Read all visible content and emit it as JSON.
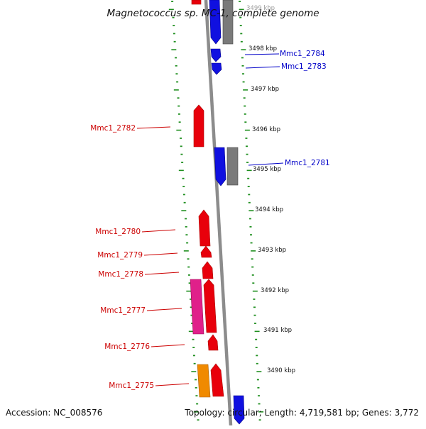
{
  "map": {
    "title": "Magnetococcus sp. MC-1, complete genome",
    "accession": "Accession: NC_008576",
    "stats": "Topology: circular; Length: 4,719,581 bp; Genes: 3,772",
    "scale_labels": [
      "3499 kbp",
      "3498 kbp",
      "3497 kbp",
      "3496 kbp",
      "3495 kbp",
      "3494 kbp",
      "3493 kbp",
      "3492 kbp",
      "3491 kbp",
      "3490 kbp"
    ],
    "colors": {
      "forward_strand": "#e8000b",
      "reverse_strand": "#1010e0",
      "other_gene": "#7a7a7a",
      "rna_gene": "#e0208a",
      "pseudogene": "#f08a00",
      "backbone": "#8c8c8c",
      "tick": "#1f8f1f",
      "label_forward": "#cc0000",
      "label_reverse": "#0000c8"
    },
    "genes": [
      {
        "id": "Mmc1_2784",
        "strand": "reverse"
      },
      {
        "id": "Mmc1_2783",
        "strand": "reverse"
      },
      {
        "id": "Mmc1_2782",
        "strand": "forward"
      },
      {
        "id": "Mmc1_2781",
        "strand": "reverse"
      },
      {
        "id": "Mmc1_2780",
        "strand": "forward"
      },
      {
        "id": "Mmc1_2779",
        "strand": "forward"
      },
      {
        "id": "Mmc1_2778",
        "strand": "forward"
      },
      {
        "id": "Mmc1_2777",
        "strand": "forward"
      },
      {
        "id": "Mmc1_2776",
        "strand": "forward"
      },
      {
        "id": "Mmc1_2775",
        "strand": "forward"
      }
    ]
  }
}
